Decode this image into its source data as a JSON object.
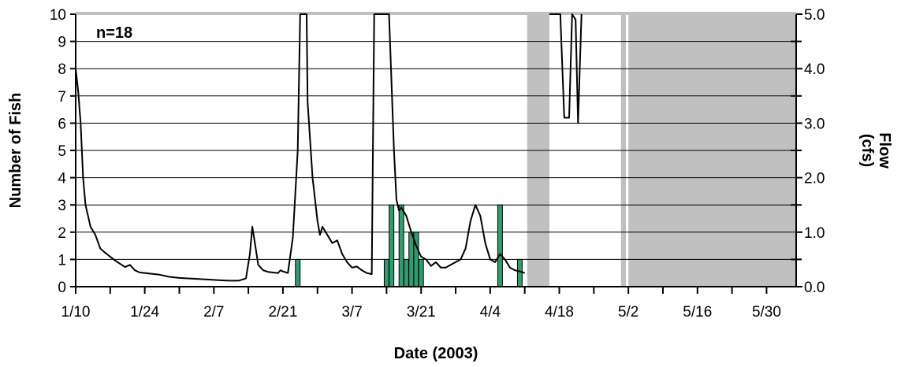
{
  "chart_data": {
    "type": "bar+line",
    "annotation": "n=18",
    "xlabel": "Date (2003)",
    "ylabel_left": "Number of Fish",
    "ylabel_right_line1": "Flow",
    "ylabel_right_line2": "(cfs)",
    "x_tick_labels": [
      "1/10",
      "1/24",
      "2/7",
      "2/21",
      "3/7",
      "3/21",
      "4/4",
      "4/18",
      "5/2",
      "5/16",
      "5/30"
    ],
    "x_tick_days": [
      0,
      14,
      28,
      42,
      56,
      70,
      84,
      98,
      112,
      126,
      140
    ],
    "xlim_days": [
      0,
      146
    ],
    "ylim_left": [
      0,
      10
    ],
    "left_tick_labels": [
      "0",
      "1",
      "2",
      "3",
      "4",
      "5",
      "6",
      "7",
      "8",
      "9",
      "10"
    ],
    "ylim_right": [
      0,
      5
    ],
    "right_tick_labels": [
      "0.0",
      "1.0",
      "2.0",
      "3.0",
      "4.0",
      "5.0"
    ],
    "gridlines": true,
    "colors": {
      "bar": "#2e9e6e",
      "flow": "#000000",
      "no_data": "#c0c0c0"
    },
    "no_data_periods_days": [
      [
        91.5,
        96
      ],
      [
        110.5,
        111.5
      ],
      [
        112,
        146
      ]
    ],
    "fish_counts": [
      {
        "day": 45,
        "count": 1
      },
      {
        "day": 63,
        "count": 1
      },
      {
        "day": 64,
        "count": 3
      },
      {
        "day": 66,
        "count": 3
      },
      {
        "day": 67,
        "count": 1
      },
      {
        "day": 68,
        "count": 2
      },
      {
        "day": 69,
        "count": 2
      },
      {
        "day": 70,
        "count": 1
      },
      {
        "day": 86,
        "count": 3
      },
      {
        "day": 90,
        "count": 1
      }
    ],
    "flow_cfs": [
      [
        0,
        4.0
      ],
      [
        0.5,
        3.6
      ],
      [
        1,
        3.0
      ],
      [
        1.5,
        2.0
      ],
      [
        2,
        1.5
      ],
      [
        3,
        1.1
      ],
      [
        4,
        0.95
      ],
      [
        5,
        0.7
      ],
      [
        6,
        0.62
      ],
      [
        7,
        0.55
      ],
      [
        8,
        0.48
      ],
      [
        9,
        0.42
      ],
      [
        10,
        0.36
      ],
      [
        11,
        0.4
      ],
      [
        12,
        0.3
      ],
      [
        13,
        0.26
      ],
      [
        15,
        0.24
      ],
      [
        17,
        0.22
      ],
      [
        19,
        0.18
      ],
      [
        21,
        0.16
      ],
      [
        23,
        0.15
      ],
      [
        25,
        0.14
      ],
      [
        27,
        0.13
      ],
      [
        29,
        0.12
      ],
      [
        31,
        0.11
      ],
      [
        33,
        0.11
      ],
      [
        34.5,
        0.15
      ],
      [
        35.3,
        0.6
      ],
      [
        35.8,
        1.1
      ],
      [
        36.4,
        0.75
      ],
      [
        37,
        0.4
      ],
      [
        38,
        0.3
      ],
      [
        39,
        0.27
      ],
      [
        40,
        0.26
      ],
      [
        41,
        0.25
      ],
      [
        41.5,
        0.3
      ],
      [
        42,
        0.28
      ],
      [
        43,
        0.25
      ],
      [
        44,
        0.9
      ],
      [
        45,
        2.5
      ],
      [
        45.5,
        5.2
      ],
      [
        46.8,
        5.2
      ],
      [
        47,
        3.4
      ],
      [
        48,
        2.0
      ],
      [
        49,
        1.2
      ],
      [
        49.5,
        0.95
      ],
      [
        50,
        1.1
      ],
      [
        51,
        0.95
      ],
      [
        52,
        0.8
      ],
      [
        53,
        0.85
      ],
      [
        54,
        0.6
      ],
      [
        55,
        0.45
      ],
      [
        56,
        0.35
      ],
      [
        57,
        0.37
      ],
      [
        58,
        0.3
      ],
      [
        59,
        0.25
      ],
      [
        60,
        0.23
      ],
      [
        60.5,
        5.2
      ],
      [
        63.5,
        5.2
      ],
      [
        64.5,
        2.5
      ],
      [
        65,
        1.6
      ],
      [
        65.5,
        1.4
      ],
      [
        66,
        1.45
      ],
      [
        67,
        1.3
      ],
      [
        68,
        1.0
      ],
      [
        69,
        0.75
      ],
      [
        70,
        0.55
      ],
      [
        71,
        0.5
      ],
      [
        72,
        0.38
      ],
      [
        73,
        0.45
      ],
      [
        74,
        0.35
      ],
      [
        75,
        0.35
      ],
      [
        76,
        0.4
      ],
      [
        77,
        0.45
      ],
      [
        78,
        0.5
      ],
      [
        79,
        0.7
      ],
      [
        80,
        1.2
      ],
      [
        81,
        1.5
      ],
      [
        82,
        1.3
      ],
      [
        83,
        0.8
      ],
      [
        84,
        0.5
      ],
      [
        85,
        0.45
      ],
      [
        86,
        0.6
      ],
      [
        87,
        0.5
      ],
      [
        88,
        0.35
      ],
      [
        89,
        0.3
      ],
      [
        90,
        0.28
      ],
      [
        91,
        0.25
      ]
    ],
    "flow_cfs_late": [
      [
        96,
        5.2
      ],
      [
        98.2,
        5.2
      ],
      [
        99,
        3.1
      ],
      [
        100,
        3.1
      ],
      [
        100.6,
        5.1
      ],
      [
        101.3,
        4.9
      ],
      [
        101.8,
        3.0
      ],
      [
        102.5,
        5.2
      ]
    ]
  }
}
